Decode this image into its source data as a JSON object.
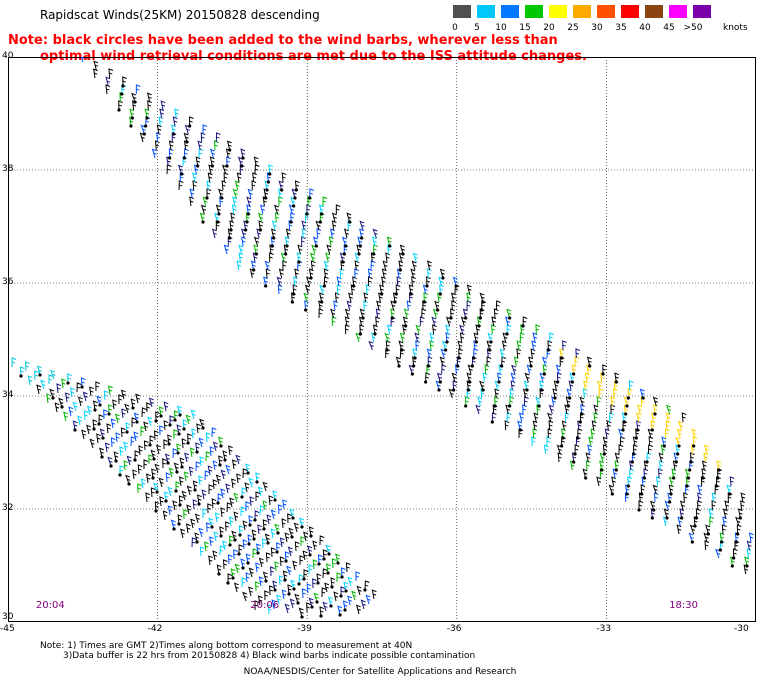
{
  "header": {
    "title": "Rapidscat Winds(25KM) 20150828 descending",
    "note_line1": "Note: black circles have been added to the wind barbs, wherever less than",
    "note_line2": "optimal wind retrieval conditions are met due to the ISS attitude changes."
  },
  "legend": {
    "unit": "knots",
    "bins": [
      {
        "label": "0",
        "color": "#505050"
      },
      {
        "label": "5",
        "color": "#00c8ff"
      },
      {
        "label": "10",
        "color": "#0078ff"
      },
      {
        "label": "15",
        "color": "#00c800"
      },
      {
        "label": "20",
        "color": "#ffff00"
      },
      {
        "label": "25",
        "color": "#ffaa00"
      },
      {
        "label": "30",
        "color": "#ff5000"
      },
      {
        "label": "35",
        "color": "#ff0000"
      },
      {
        "label": "40",
        "color": "#8b4513"
      },
      {
        "label": "45",
        "color": "#ff00ff"
      },
      {
        "label": ">50",
        "color": "#7a00aa"
      }
    ]
  },
  "map": {
    "lat_labels": [
      "40",
      "38",
      "36",
      "34",
      "32",
      "30"
    ],
    "lon_labels": [
      "-45",
      "-42",
      "-39",
      "-36",
      "-33",
      "-30"
    ],
    "lat_range": [
      30,
      40
    ],
    "lon_range": [
      -45,
      -30
    ],
    "time_labels": [
      {
        "text": "20:04",
        "lon": -44.2
      },
      {
        "text": "20:06",
        "lon": -39.9
      },
      {
        "text": "18:30",
        "lon": -31.5
      }
    ]
  },
  "footer": {
    "line1": "Note: 1) Times are GMT 2)Times along bottom correspond to measurement at 40N",
    "line2": "3)Data buffer is 22 hrs from 20150828 4) Black wind barbs indicate possible contamination",
    "line3": "NOAA/NESDIS/Center for Satellite Applications and Research"
  }
}
